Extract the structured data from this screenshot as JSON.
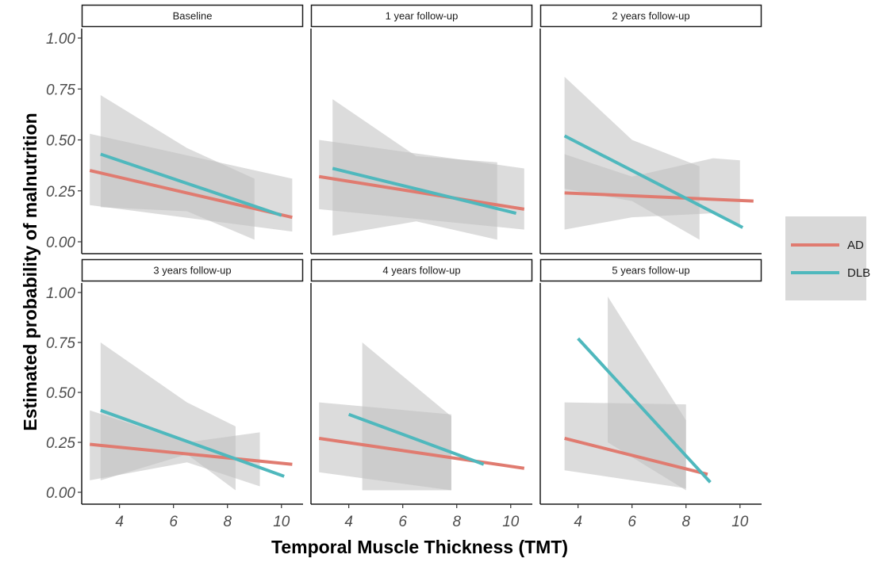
{
  "chart_data": {
    "type": "line",
    "xlabel": "Temporal Muscle Thickness (TMT)",
    "ylabel": "Estimated probability of malnutrition",
    "xlim": [
      2.6,
      10.8
    ],
    "ylim": [
      0,
      1
    ],
    "xticks": [
      4,
      6,
      8,
      10
    ],
    "yticks": [
      0,
      0.25,
      0.5,
      0.75,
      1
    ],
    "ytick_labels": [
      "0.00",
      "0.25",
      "0.50",
      "0.75",
      "1.00"
    ],
    "legend": {
      "position": "right",
      "entries": [
        "AD",
        "DLB"
      ]
    },
    "colors": {
      "AD": "#e07b70",
      "DLB": "#4fb8bd",
      "band": "#c0c0c0"
    },
    "panels": [
      {
        "title": "Baseline",
        "series": [
          {
            "name": "AD",
            "x": [
              2.9,
              10.4
            ],
            "y": [
              0.35,
              0.12
            ],
            "ci_x": [
              2.9,
              10.4
            ],
            "ci_upper": [
              0.53,
              0.31
            ],
            "ci_lower": [
              0.18,
              0.05
            ]
          },
          {
            "name": "DLB",
            "x": [
              3.3,
              10.0
            ],
            "y": [
              0.43,
              0.13
            ],
            "ci_x": [
              3.3,
              6.5,
              9.0
            ],
            "ci_upper": [
              0.72,
              0.46,
              0.31
            ],
            "ci_lower": [
              0.17,
              0.15,
              0.01
            ]
          }
        ]
      },
      {
        "title": "1 year follow-up",
        "series": [
          {
            "name": "AD",
            "x": [
              2.9,
              10.5
            ],
            "y": [
              0.32,
              0.16
            ],
            "ci_x": [
              2.9,
              10.5
            ],
            "ci_upper": [
              0.5,
              0.36
            ],
            "ci_lower": [
              0.16,
              0.06
            ]
          },
          {
            "name": "DLB",
            "x": [
              3.4,
              10.2
            ],
            "y": [
              0.36,
              0.14
            ],
            "ci_x": [
              3.4,
              6.5,
              9.5
            ],
            "ci_upper": [
              0.7,
              0.42,
              0.39
            ],
            "ci_lower": [
              0.03,
              0.1,
              0.01
            ]
          }
        ]
      },
      {
        "title": "2 years follow-up",
        "series": [
          {
            "name": "AD",
            "x": [
              3.5,
              10.5
            ],
            "y": [
              0.24,
              0.2
            ],
            "ci_x": [
              3.5,
              6.0,
              9.0,
              10.0
            ],
            "ci_upper": [
              0.43,
              0.32,
              0.41,
              0.4
            ],
            "ci_lower": [
              0.06,
              0.12,
              0.14,
              0.07
            ]
          },
          {
            "name": "DLB",
            "x": [
              3.5,
              10.1
            ],
            "y": [
              0.52,
              0.07
            ],
            "ci_x": [
              3.5,
              6.0,
              8.5
            ],
            "ci_upper": [
              0.81,
              0.5,
              0.37
            ],
            "ci_lower": [
              0.26,
              0.2,
              0.01
            ]
          }
        ]
      },
      {
        "title": "3 years follow-up",
        "series": [
          {
            "name": "AD",
            "x": [
              2.9,
              10.4
            ],
            "y": [
              0.24,
              0.14
            ],
            "ci_x": [
              2.9,
              6.5,
              9.2
            ],
            "ci_upper": [
              0.41,
              0.25,
              0.3
            ],
            "ci_lower": [
              0.06,
              0.15,
              0.03
            ]
          },
          {
            "name": "DLB",
            "x": [
              3.3,
              10.1
            ],
            "y": [
              0.41,
              0.08
            ],
            "ci_x": [
              3.3,
              6.5,
              8.3
            ],
            "ci_upper": [
              0.75,
              0.45,
              0.33
            ],
            "ci_lower": [
              0.06,
              0.19,
              0.01
            ]
          }
        ]
      },
      {
        "title": "4 years follow-up",
        "series": [
          {
            "name": "AD",
            "x": [
              2.9,
              10.5
            ],
            "y": [
              0.27,
              0.12
            ],
            "ci_x": [
              2.9,
              7.8
            ],
            "ci_upper": [
              0.45,
              0.39
            ],
            "ci_lower": [
              0.1,
              0.01
            ]
          },
          {
            "name": "DLB",
            "x": [
              4.0,
              9.0
            ],
            "y": [
              0.39,
              0.14
            ],
            "ci_x": [
              4.5,
              7.8
            ],
            "ci_upper": [
              0.75,
              0.38
            ],
            "ci_lower": [
              0.01,
              0.01
            ]
          }
        ]
      },
      {
        "title": "5 years follow-up",
        "series": [
          {
            "name": "AD",
            "x": [
              3.5,
              8.8
            ],
            "y": [
              0.27,
              0.09
            ],
            "ci_x": [
              3.5,
              8.0
            ],
            "ci_upper": [
              0.45,
              0.44
            ],
            "ci_lower": [
              0.11,
              0.02
            ]
          },
          {
            "name": "DLB",
            "x": [
              4.0,
              8.9
            ],
            "y": [
              0.77,
              0.05
            ],
            "ci_x": [
              5.1,
              8.0
            ],
            "ci_upper": [
              0.98,
              0.36
            ],
            "ci_lower": [
              0.25,
              0.01
            ]
          }
        ]
      }
    ]
  }
}
